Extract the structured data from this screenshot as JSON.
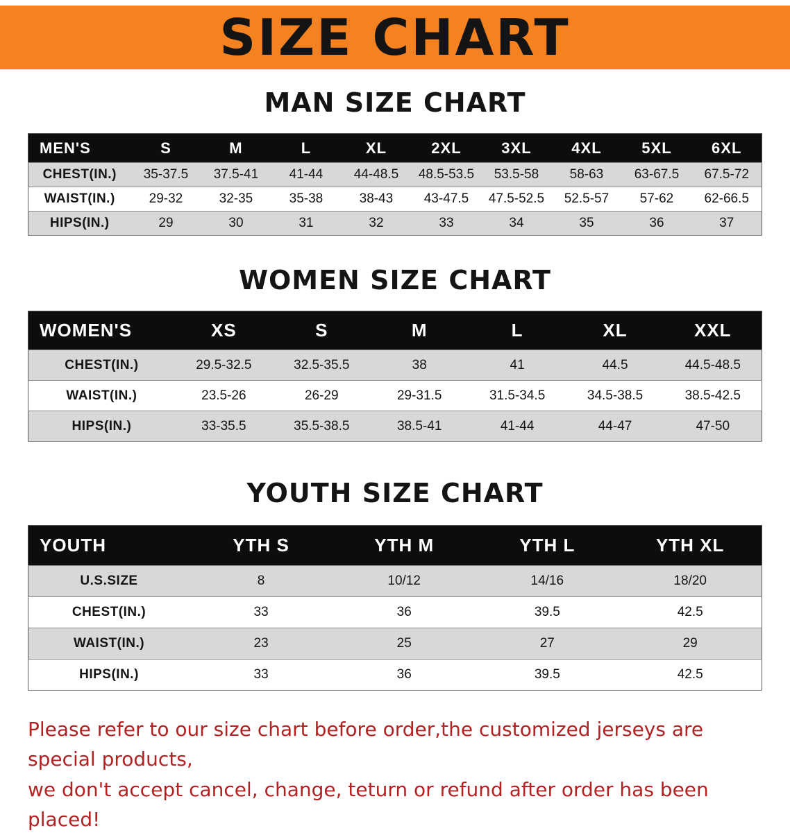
{
  "banner": {
    "title": "SIZE CHART"
  },
  "sections": {
    "men": {
      "title": "MAN SIZE CHART",
      "header": [
        "MEN'S",
        "S",
        "M",
        "L",
        "XL",
        "2XL",
        "3XL",
        "4XL",
        "5XL",
        "6XL"
      ],
      "rows": [
        {
          "label": "CHEST(IN.)",
          "values": [
            "35-37.5",
            "37.5-41",
            "41-44",
            "44-48.5",
            "48.5-53.5",
            "53.5-58",
            "58-63",
            "63-67.5",
            "67.5-72"
          ]
        },
        {
          "label": "WAIST(IN.)",
          "values": [
            "29-32",
            "32-35",
            "35-38",
            "38-43",
            "43-47.5",
            "47.5-52.5",
            "52.5-57",
            "57-62",
            "62-66.5"
          ]
        },
        {
          "label": "HIPS(IN.)",
          "values": [
            "29",
            "30",
            "31",
            "32",
            "33",
            "34",
            "35",
            "36",
            "37"
          ]
        }
      ]
    },
    "women": {
      "title": "WOMEN SIZE CHART",
      "header": [
        "WOMEN'S",
        "XS",
        "S",
        "M",
        "L",
        "XL",
        "XXL"
      ],
      "rows": [
        {
          "label": "CHEST(IN.)",
          "values": [
            "29.5-32.5",
            "32.5-35.5",
            "38",
            "41",
            "44.5",
            "44.5-48.5"
          ]
        },
        {
          "label": "WAIST(IN.)",
          "values": [
            "23.5-26",
            "26-29",
            "29-31.5",
            "31.5-34.5",
            "34.5-38.5",
            "38.5-42.5"
          ]
        },
        {
          "label": "HIPS(IN.)",
          "values": [
            "33-35.5",
            "35.5-38.5",
            "38.5-41",
            "41-44",
            "44-47",
            "47-50"
          ]
        }
      ]
    },
    "youth": {
      "title": "YOUTH SIZE CHART",
      "header": [
        "YOUTH",
        "YTH S",
        "YTH M",
        "YTH L",
        "YTH XL"
      ],
      "rows": [
        {
          "label": "U.S.SIZE",
          "values": [
            "8",
            "10/12",
            "14/16",
            "18/20"
          ]
        },
        {
          "label": "CHEST(IN.)",
          "values": [
            "33",
            "36",
            "39.5",
            "42.5"
          ]
        },
        {
          "label": "WAIST(IN.)",
          "values": [
            "23",
            "25",
            "27",
            "29"
          ]
        },
        {
          "label": "HIPS(IN.)",
          "values": [
            "33",
            "36",
            "39.5",
            "42.5"
          ]
        }
      ]
    }
  },
  "footer": {
    "line1": "Please refer to our size chart before order,the customized jerseys are special products,",
    "line2": "we don't accept cancel, change, teturn or refund after order has been placed!"
  },
  "colors": {
    "banner_bg": "#f58220",
    "header_bg": "#0d0d0d",
    "row_alt_bg": "#d8d8d8",
    "row_bg": "#ffffff",
    "title_color": "#141414",
    "footer_text": "#b22222"
  }
}
